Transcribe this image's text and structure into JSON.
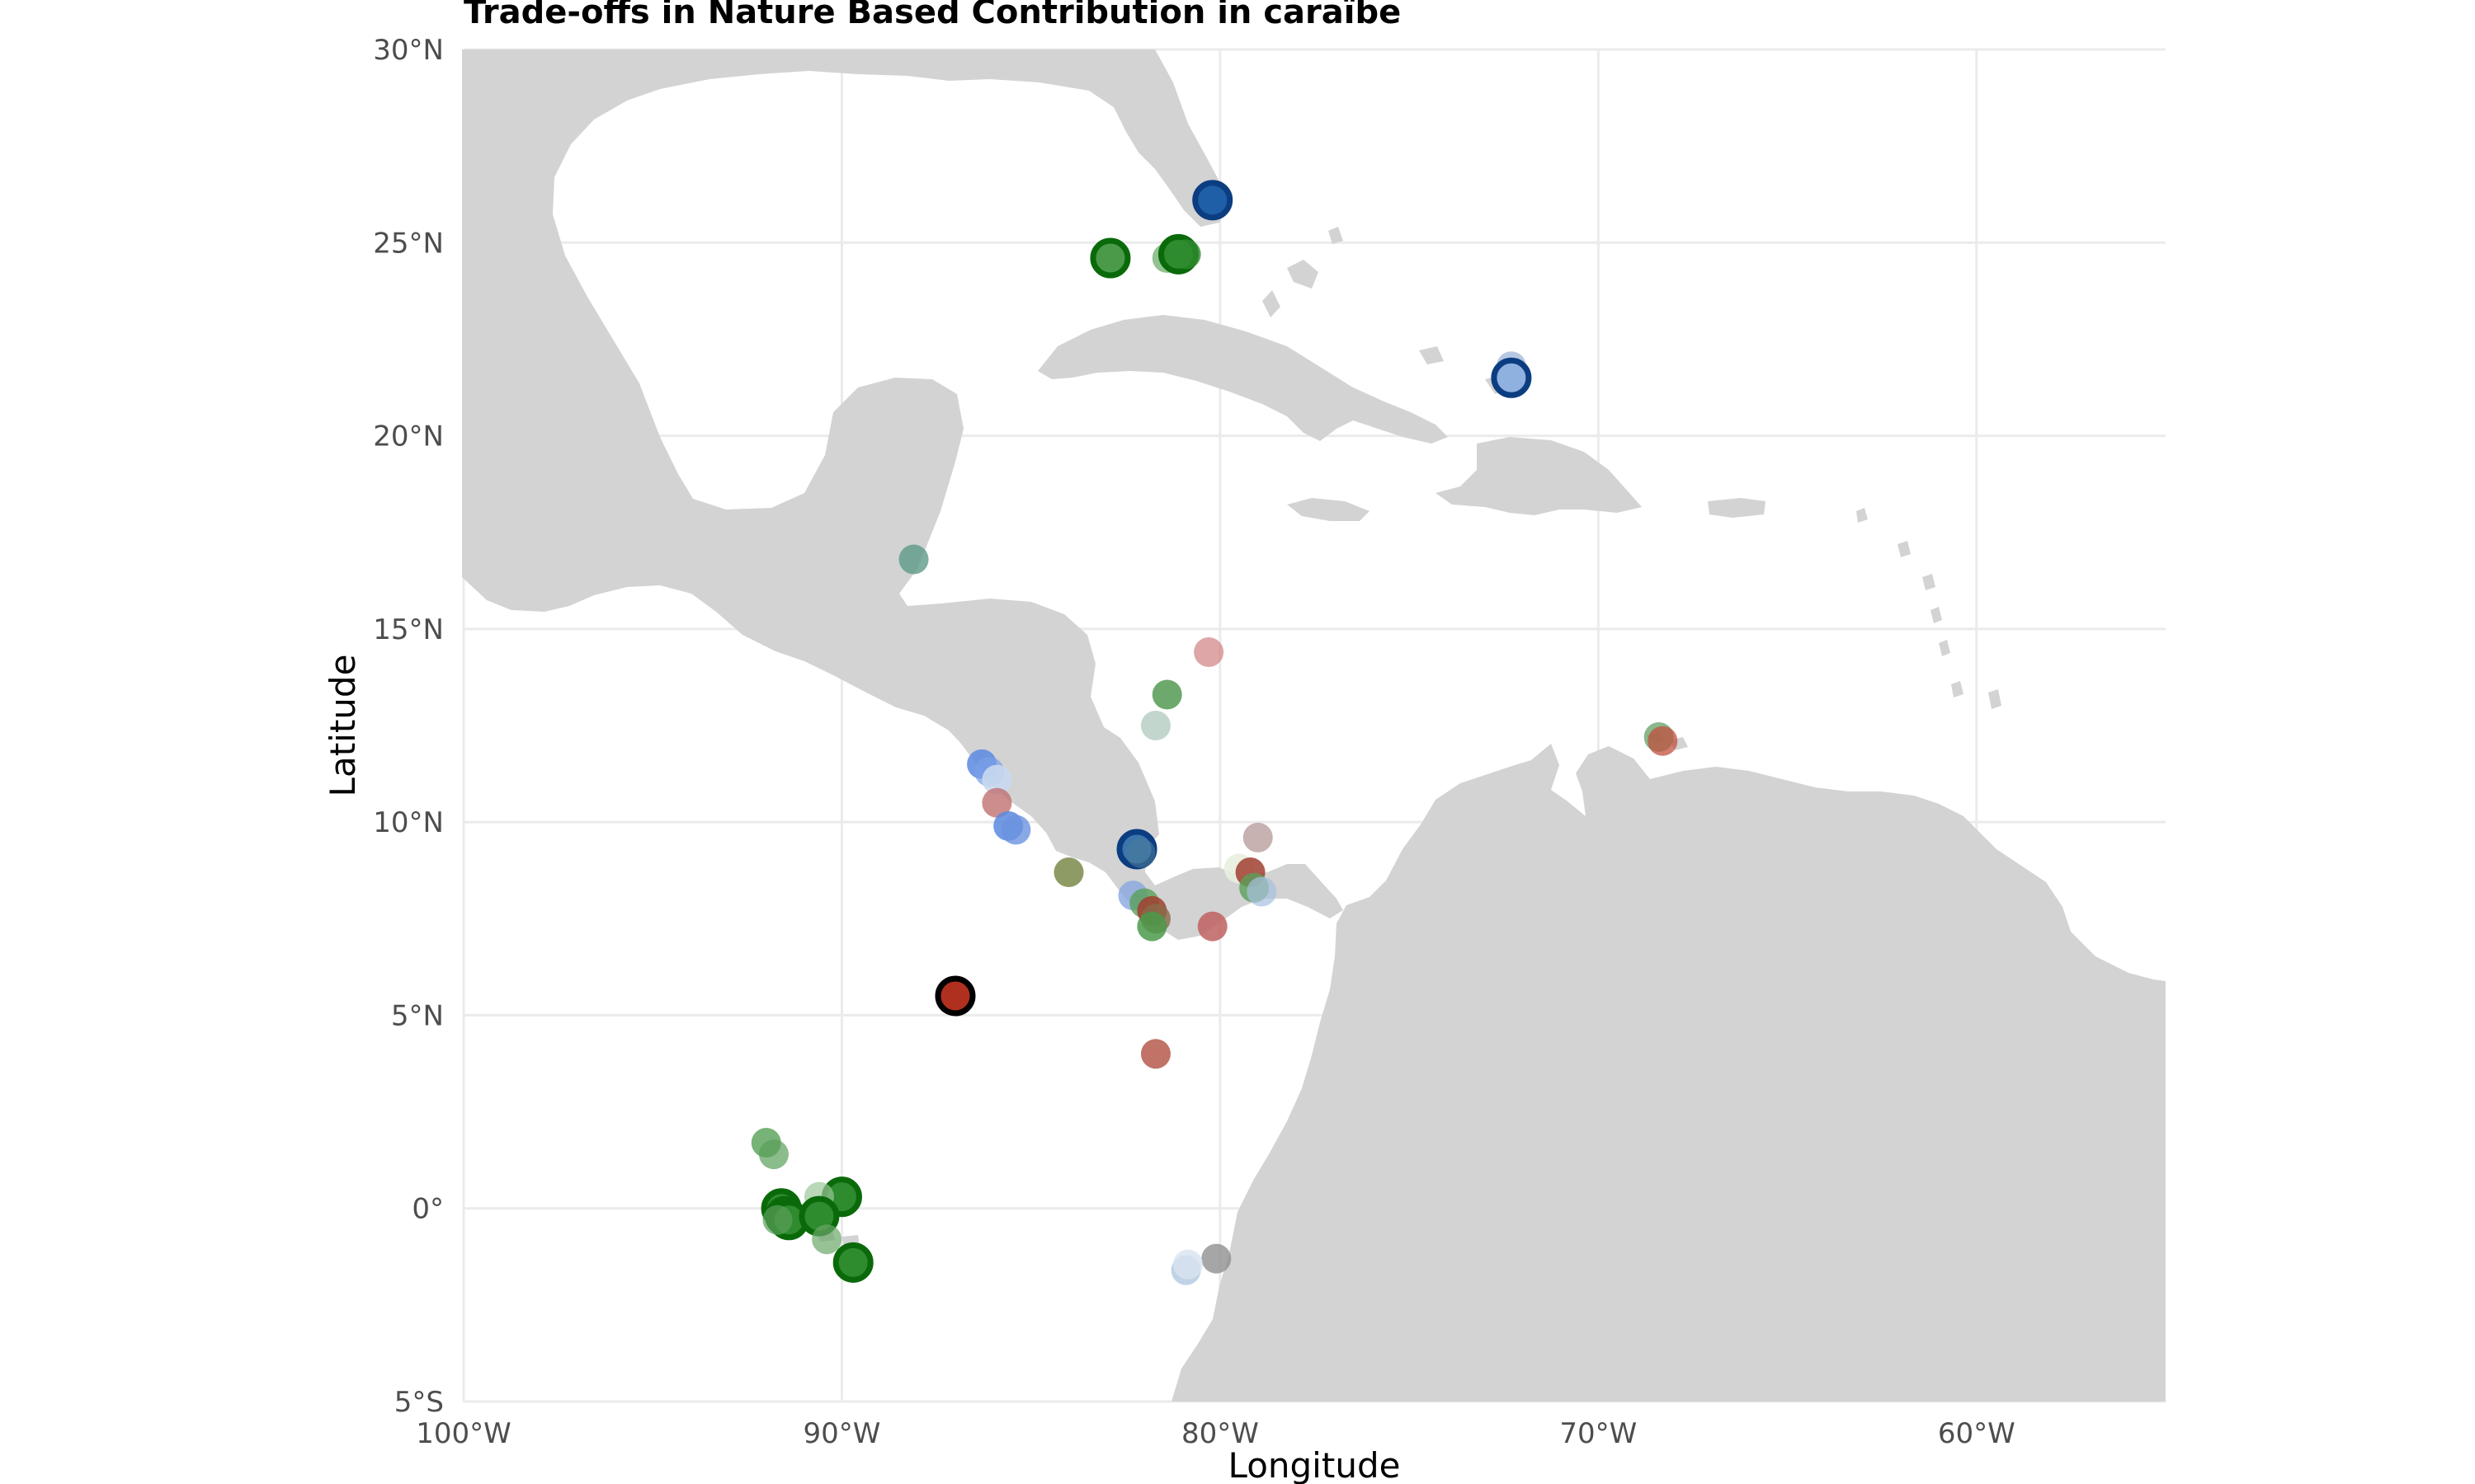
{
  "title": "Trade-offs in Nature Based Contribution in caraïbe",
  "xlabel": "Longitude",
  "ylabel": "Latitude",
  "colors": {
    "land": "#d3d3d3",
    "grid": "#ebebeb"
  },
  "chart_data": {
    "type": "scatter",
    "xlim": [
      -100,
      -55
    ],
    "ylim": [
      -5,
      30
    ],
    "x_ticks": [
      {
        "value": -100,
        "label": "100°W"
      },
      {
        "value": -90,
        "label": "90°W"
      },
      {
        "value": -80,
        "label": "80°W"
      },
      {
        "value": -70,
        "label": "70°W"
      },
      {
        "value": -60,
        "label": "60°W"
      }
    ],
    "y_ticks": [
      {
        "value": 30,
        "label": "30°N"
      },
      {
        "value": 25,
        "label": "25°N"
      },
      {
        "value": 20,
        "label": "20°N"
      },
      {
        "value": 15,
        "label": "15°N"
      },
      {
        "value": 10,
        "label": "10°N"
      },
      {
        "value": 5,
        "label": "5°N"
      },
      {
        "value": 0,
        "label": "0°"
      },
      {
        "value": -5,
        "label": "5°S"
      }
    ],
    "grid": true,
    "legend": "none",
    "points": [
      {
        "lon": -80.2,
        "lat": 26.1,
        "color": "#1f5fa8",
        "alpha": 1.0,
        "outline": "#0b3d80"
      },
      {
        "lon": -82.9,
        "lat": 24.6,
        "color": "#4a9a4a",
        "alpha": 1.0,
        "outline": "#0a6a0a"
      },
      {
        "lon": -81.4,
        "lat": 24.6,
        "color": "#4a9a4a",
        "alpha": 0.6,
        "outline": ""
      },
      {
        "lon": -81.1,
        "lat": 24.7,
        "color": "#2e8b2e",
        "alpha": 1.0,
        "outline": "#0a6a0a"
      },
      {
        "lon": -80.9,
        "lat": 24.7,
        "color": "#2e8b2e",
        "alpha": 0.8,
        "outline": ""
      },
      {
        "lon": -72.3,
        "lat": 21.8,
        "color": "#9ab0d6",
        "alpha": 0.7,
        "outline": ""
      },
      {
        "lon": -72.3,
        "lat": 21.5,
        "color": "#8fb1e0",
        "alpha": 1.0,
        "outline": "#0b3d80"
      },
      {
        "lon": -88.1,
        "lat": 16.8,
        "color": "#5e9a88",
        "alpha": 0.8,
        "outline": ""
      },
      {
        "lon": -80.3,
        "lat": 14.4,
        "color": "#d08080",
        "alpha": 0.7,
        "outline": ""
      },
      {
        "lon": -81.4,
        "lat": 13.3,
        "color": "#3c8c3c",
        "alpha": 0.75,
        "outline": ""
      },
      {
        "lon": -81.7,
        "lat": 12.5,
        "color": "#a8c4b8",
        "alpha": 0.7,
        "outline": ""
      },
      {
        "lon": -86.3,
        "lat": 11.5,
        "color": "#5a8ae0",
        "alpha": 0.85,
        "outline": ""
      },
      {
        "lon": -86.1,
        "lat": 11.3,
        "color": "#7aa0e8",
        "alpha": 0.7,
        "outline": ""
      },
      {
        "lon": -85.9,
        "lat": 11.1,
        "color": "#c8d8f0",
        "alpha": 0.9,
        "outline": ""
      },
      {
        "lon": -85.9,
        "lat": 10.5,
        "color": "#c07070",
        "alpha": 0.8,
        "outline": ""
      },
      {
        "lon": -85.6,
        "lat": 9.9,
        "color": "#5a8ae0",
        "alpha": 0.85,
        "outline": ""
      },
      {
        "lon": -85.4,
        "lat": 9.8,
        "color": "#6b92e0",
        "alpha": 0.8,
        "outline": ""
      },
      {
        "lon": -82.2,
        "lat": 9.3,
        "color": "#2a6aa8",
        "alpha": 0.9,
        "outline": "#0b3d80"
      },
      {
        "lon": -82.1,
        "lat": 9.2,
        "color": "#4a7a9a",
        "alpha": 0.6,
        "outline": ""
      },
      {
        "lon": -84.0,
        "lat": 8.7,
        "color": "#7a8a4a",
        "alpha": 0.85,
        "outline": ""
      },
      {
        "lon": -79.5,
        "lat": 8.8,
        "color": "#e8f0e0",
        "alpha": 0.9,
        "outline": ""
      },
      {
        "lon": -79.0,
        "lat": 9.6,
        "color": "#b09090",
        "alpha": 0.7,
        "outline": ""
      },
      {
        "lon": -79.2,
        "lat": 8.7,
        "color": "#a04030",
        "alpha": 0.85,
        "outline": ""
      },
      {
        "lon": -79.1,
        "lat": 8.3,
        "color": "#5aa05a",
        "alpha": 0.8,
        "outline": ""
      },
      {
        "lon": -78.9,
        "lat": 8.2,
        "color": "#a8c0e0",
        "alpha": 0.7,
        "outline": ""
      },
      {
        "lon": -82.3,
        "lat": 8.1,
        "color": "#8aa8e0",
        "alpha": 0.8,
        "outline": ""
      },
      {
        "lon": -82.0,
        "lat": 7.9,
        "color": "#5aa05a",
        "alpha": 0.8,
        "outline": ""
      },
      {
        "lon": -81.8,
        "lat": 7.7,
        "color": "#a04030",
        "alpha": 0.85,
        "outline": ""
      },
      {
        "lon": -81.7,
        "lat": 7.5,
        "color": "#8a6a4a",
        "alpha": 0.8,
        "outline": ""
      },
      {
        "lon": -81.8,
        "lat": 7.3,
        "color": "#4a9a4a",
        "alpha": 0.85,
        "outline": ""
      },
      {
        "lon": -80.2,
        "lat": 7.3,
        "color": "#c06060",
        "alpha": 0.85,
        "outline": ""
      },
      {
        "lon": -87.0,
        "lat": 5.5,
        "color": "#b03020",
        "alpha": 1.0,
        "outline": "#000000"
      },
      {
        "lon": -81.7,
        "lat": 4.0,
        "color": "#b05040",
        "alpha": 0.8,
        "outline": ""
      },
      {
        "lon": -92.0,
        "lat": 1.7,
        "color": "#4a9a4a",
        "alpha": 0.75,
        "outline": ""
      },
      {
        "lon": -91.8,
        "lat": 1.4,
        "color": "#5aa05a",
        "alpha": 0.7,
        "outline": ""
      },
      {
        "lon": -90.0,
        "lat": 0.3,
        "color": "#2e8b2e",
        "alpha": 1.0,
        "outline": "#0a6a0a"
      },
      {
        "lon": -90.6,
        "lat": 0.3,
        "color": "#9ac89a",
        "alpha": 0.7,
        "outline": ""
      },
      {
        "lon": -91.6,
        "lat": 0.0,
        "color": "#2e8b2e",
        "alpha": 1.0,
        "outline": "#0a6a0a"
      },
      {
        "lon": -91.5,
        "lat": -0.2,
        "color": "#2e8b2e",
        "alpha": 1.0,
        "outline": "#0a6a0a"
      },
      {
        "lon": -91.4,
        "lat": -0.3,
        "color": "#2e8b2e",
        "alpha": 1.0,
        "outline": "#0a6a0a"
      },
      {
        "lon": -91.7,
        "lat": -0.3,
        "color": "#5aa05a",
        "alpha": 0.7,
        "outline": ""
      },
      {
        "lon": -90.6,
        "lat": -0.2,
        "color": "#2e8b2e",
        "alpha": 1.0,
        "outline": "#0a6a0a"
      },
      {
        "lon": -90.4,
        "lat": -0.8,
        "color": "#6aa86a",
        "alpha": 0.7,
        "outline": ""
      },
      {
        "lon": -89.7,
        "lat": -1.4,
        "color": "#2e8b2e",
        "alpha": 1.0,
        "outline": "#0a6a0a"
      },
      {
        "lon": -80.1,
        "lat": -1.3,
        "color": "#909090",
        "alpha": 0.8,
        "outline": ""
      },
      {
        "lon": -80.9,
        "lat": -1.6,
        "color": "#b0c8e0",
        "alpha": 0.8,
        "outline": ""
      },
      {
        "lon": -80.85,
        "lat": -1.45,
        "color": "#d8e4f0",
        "alpha": 0.8,
        "outline": ""
      },
      {
        "lon": -68.4,
        "lat": 12.2,
        "color": "#5a9a5a",
        "alpha": 0.7,
        "outline": ""
      },
      {
        "lon": -68.3,
        "lat": 12.1,
        "color": "#c05040",
        "alpha": 0.75,
        "outline": ""
      }
    ]
  }
}
